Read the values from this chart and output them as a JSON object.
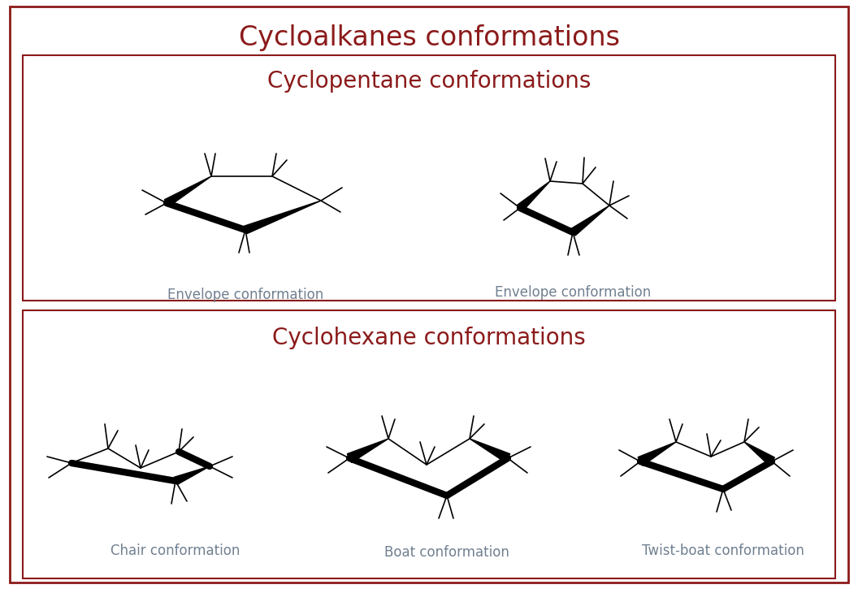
{
  "title": "Cycloalkanes conformations",
  "title_color": "#8B1A1A",
  "title_fontsize": 24,
  "bg_color": "#FFFFFF",
  "border_color": "#8B1A1A",
  "section1_title": "Cyclopentane conformations",
  "section2_title": "Cyclohexane conformations",
  "section_title_color": "#8B1A1A",
  "section_title_fontsize": 20,
  "label_color": "#708090",
  "label_fontsize": 12,
  "bold_lw": 6,
  "thin_lw": 1.2,
  "labels": {
    "env1": "Envelope conformation",
    "env2": "Envelope conformation",
    "chair": "Chair conformation",
    "boat": "Boat conformation",
    "twistboat": "Twist-boat conformation"
  }
}
